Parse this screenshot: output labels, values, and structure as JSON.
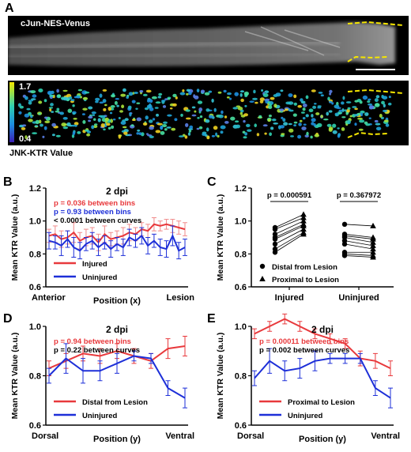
{
  "panel_a": {
    "letter": "A",
    "image_title": "cJun-NES-Venus",
    "colorbar_max": "1.7",
    "colorbar_min": "0.4",
    "colorbar_label": "JNK-KTR Value"
  },
  "colors": {
    "injured": "#e8393c",
    "uninjured": "#1d2fd8",
    "red_stat": "#e8393c",
    "blue_stat": "#1d2fd8",
    "lesion_line": "#f5e600",
    "panel_b_injured_err": "#f08a8a"
  },
  "chart_data": [
    {
      "panel": "B",
      "type": "line",
      "title": "2 dpi",
      "xlabel": "Position (x)",
      "x_left_label": "Anterior",
      "x_right_label": "Lesion",
      "ylabel": "Mean KTR Value (a.u.)",
      "ylim": [
        0.6,
        1.2
      ],
      "yticks": [
        "0.6",
        "0.8",
        "1.0",
        "1.2"
      ],
      "stats": [
        {
          "text": "p = 0.036 between bins",
          "color": "red"
        },
        {
          "text": "p = 0.93 between bins",
          "color": "blue"
        },
        {
          "text": "< 0.0001 between curves",
          "color": "black"
        }
      ],
      "legend": [
        "Injured",
        "Uninjured"
      ],
      "legend_position": "bottom-left",
      "series": [
        {
          "name": "Injured",
          "color": "#e8393c",
          "values": [
            0.91,
            0.92,
            0.89,
            0.9,
            0.93,
            0.88,
            0.9,
            0.91,
            0.87,
            0.92,
            0.89,
            0.9,
            0.91,
            0.93,
            0.92,
            0.95,
            0.94,
            0.98,
            0.97,
            0.98,
            0.97,
            0.96,
            0.95
          ],
          "errors": [
            0.04,
            0.05,
            0.05,
            0.04,
            0.06,
            0.05,
            0.05,
            0.05,
            0.05,
            0.05,
            0.04,
            0.04,
            0.05,
            0.05,
            0.04,
            0.04,
            0.04,
            0.04,
            0.03,
            0.03,
            0.04,
            0.04,
            0.04
          ]
        },
        {
          "name": "Uninjured",
          "color": "#1d2fd8",
          "values": [
            0.88,
            0.87,
            0.85,
            0.89,
            0.84,
            0.82,
            0.86,
            0.88,
            0.84,
            0.87,
            0.83,
            0.86,
            0.84,
            0.9,
            0.88,
            0.91,
            0.85,
            0.88,
            0.84,
            0.83,
            0.91,
            0.82,
            0.84
          ],
          "errors": [
            0.05,
            0.04,
            0.06,
            0.05,
            0.06,
            0.05,
            0.04,
            0.05,
            0.05,
            0.04,
            0.05,
            0.04,
            0.05,
            0.05,
            0.04,
            0.05,
            0.05,
            0.04,
            0.05,
            0.05,
            0.06,
            0.05,
            0.05
          ]
        }
      ]
    },
    {
      "panel": "C",
      "type": "scatter",
      "xlabel": "",
      "ylabel": "Mean KTR Value (a.u.)",
      "ylim": [
        0.6,
        1.2
      ],
      "yticks": [
        "0.6",
        "0.8",
        "1.0",
        "1.2"
      ],
      "categories": [
        "Injured",
        "Uninjured"
      ],
      "pvalues": [
        "p = 0.000591",
        "p = 0.367972"
      ],
      "legend": [
        "Distal from Lesion",
        "Proximal to Lesion"
      ],
      "legend_position": "bottom-left",
      "pairs": [
        {
          "group": "Injured",
          "distal": [
            0.96,
            0.95,
            0.92,
            0.9,
            0.89,
            0.86,
            0.83,
            0.81
          ],
          "proximal": [
            1.04,
            1.02,
            1.0,
            0.98,
            0.97,
            0.95,
            0.93,
            0.92
          ]
        },
        {
          "group": "Uninjured",
          "distal": [
            0.98,
            0.92,
            0.91,
            0.9,
            0.88,
            0.86,
            0.81,
            0.8,
            0.79
          ],
          "proximal": [
            0.97,
            0.9,
            0.89,
            0.87,
            0.85,
            0.83,
            0.81,
            0.79,
            0.78
          ]
        }
      ]
    },
    {
      "panel": "D",
      "type": "line",
      "title": "2 dpi",
      "xlabel": "Position (y)",
      "x_left_label": "Dorsal",
      "x_right_label": "Ventral",
      "ylabel": "Mean KTR Value (a.u.)",
      "ylim": [
        0.6,
        1.0
      ],
      "yticks": [
        "0.6",
        "0.8",
        "1.0"
      ],
      "stats": [
        {
          "text": "p = 0.94 between bins",
          "color": "red"
        },
        {
          "text": "p = 0.22 between curves",
          "color": "black"
        }
      ],
      "legend": [
        "Distal from Lesion",
        "Uninjured"
      ],
      "legend_position": "bottom-left",
      "series": [
        {
          "name": "Distal from Lesion",
          "color": "#e8393c",
          "values": [
            0.83,
            0.86,
            0.89,
            0.88,
            0.9,
            0.88,
            0.86,
            0.91,
            0.92
          ],
          "errors": [
            0.03,
            0.03,
            0.03,
            0.03,
            0.03,
            0.03,
            0.03,
            0.04,
            0.04
          ]
        },
        {
          "name": "Uninjured",
          "color": "#1d2fd8",
          "values": [
            0.8,
            0.87,
            0.82,
            0.82,
            0.85,
            0.88,
            0.87,
            0.75,
            0.71
          ],
          "errors": [
            0.03,
            0.06,
            0.05,
            0.04,
            0.04,
            0.02,
            0.02,
            0.03,
            0.04
          ]
        }
      ]
    },
    {
      "panel": "E",
      "type": "line",
      "title": "2 dpi",
      "xlabel": "Position (y)",
      "x_left_label": "Dorsal",
      "x_right_label": "Ventral",
      "ylabel": "Mean KTR Value (a.u.)",
      "ylim": [
        0.6,
        1.0
      ],
      "yticks": [
        "0.6",
        "0.8",
        "1.0"
      ],
      "stats": [
        {
          "text": "p = 0.00011 between bins",
          "color": "red"
        },
        {
          "text": "p = 0.002 between curves",
          "color": "black"
        }
      ],
      "legend": [
        "Proximal to Lesion",
        "Uninjured"
      ],
      "legend_position": "bottom-left",
      "series": [
        {
          "name": "Proximal to Lesion",
          "color": "#e8393c",
          "values": [
            0.97,
            1.0,
            1.03,
            1.0,
            0.97,
            0.95,
            0.93,
            0.87,
            0.86,
            0.83
          ],
          "errors": [
            0.02,
            0.02,
            0.02,
            0.02,
            0.02,
            0.02,
            0.02,
            0.03,
            0.03,
            0.03
          ]
        },
        {
          "name": "Uninjured",
          "color": "#1d2fd8",
          "values": [
            0.79,
            0.86,
            0.82,
            0.83,
            0.86,
            0.87,
            0.87,
            0.87,
            0.75,
            0.71
          ],
          "errors": [
            0.03,
            0.05,
            0.04,
            0.04,
            0.04,
            0.02,
            0.02,
            0.02,
            0.03,
            0.04
          ]
        }
      ]
    }
  ]
}
